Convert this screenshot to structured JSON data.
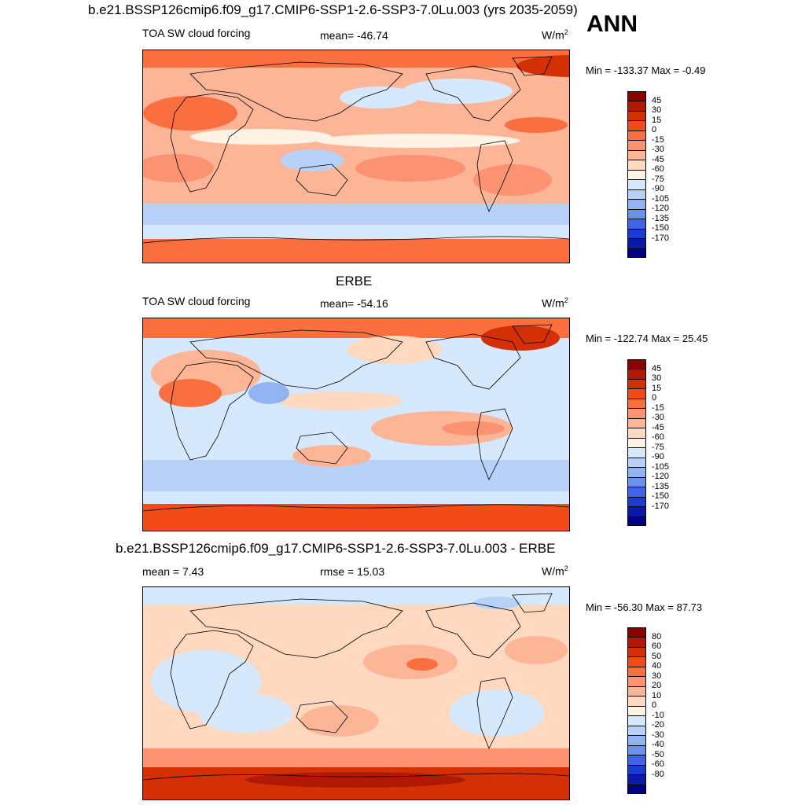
{
  "season": "ANN",
  "panels": [
    {
      "id": "model",
      "title": "b.e21.BSSP126cmip6.f09_g17.CMIP6-SSP1-2.6-SSP3-7.0Lu.003 (yrs 2035-2059)",
      "left_text": "TOA SW cloud forcing",
      "center_text": "mean= -46.74",
      "units_base": "W/m",
      "units_exp": "2",
      "minmax": "Min = -133.37 Max =  -0.49",
      "levels": [
        "45",
        "30",
        "15",
        "0",
        "-15",
        "-30",
        "-45",
        "-60",
        "-75",
        "-90",
        "-105",
        "-120",
        "-135",
        "-150",
        "-170"
      ],
      "colors": [
        "#8b0000",
        "#b01a04",
        "#d43006",
        "#f24b1a",
        "#fa6f40",
        "#fb9271",
        "#fdb597",
        "#fed8bf",
        "#fff3e6",
        "#d6e8fb",
        "#b7d1f8",
        "#92b3f2",
        "#6b91ec",
        "#3f63e6",
        "#1a3cd4",
        "#0a1aa8",
        "#000080"
      ]
    },
    {
      "id": "obs",
      "title": "ERBE",
      "left_text": "TOA SW cloud forcing",
      "center_text": "mean= -54.16",
      "units_base": "W/m",
      "units_exp": "2",
      "minmax": "Min = -122.74 Max =  25.45",
      "levels": [
        "45",
        "30",
        "15",
        "0",
        "-15",
        "-30",
        "-45",
        "-60",
        "-75",
        "-90",
        "-105",
        "-120",
        "-135",
        "-150",
        "-170"
      ],
      "colors": [
        "#8b0000",
        "#b01a04",
        "#d43006",
        "#f24b1a",
        "#fa6f40",
        "#fb9271",
        "#fdb597",
        "#fed8bf",
        "#fff3e6",
        "#d6e8fb",
        "#b7d1f8",
        "#92b3f2",
        "#6b91ec",
        "#3f63e6",
        "#1a3cd4",
        "#0a1aa8",
        "#000080"
      ]
    },
    {
      "id": "diff",
      "title": "b.e21.BSSP126cmip6.f09_g17.CMIP6-SSP1-2.6-SSP3-7.0Lu.003 - ERBE",
      "left_text": "mean =   7.43",
      "center_text": "rmse =  15.03",
      "units_base": "W/m",
      "units_exp": "2",
      "minmax": "Min = -56.30 Max =  87.73",
      "levels": [
        "80",
        "60",
        "50",
        "40",
        "30",
        "20",
        "10",
        "0",
        "-10",
        "-20",
        "-30",
        "-40",
        "-50",
        "-60",
        "-80"
      ],
      "colors": [
        "#8b0000",
        "#b01a04",
        "#d43006",
        "#f24b1a",
        "#fa6f40",
        "#fb9271",
        "#fdb597",
        "#fed8bf",
        "#fff3e6",
        "#d6e8fb",
        "#b7d1f8",
        "#92b3f2",
        "#6b91ec",
        "#3f63e6",
        "#1a3cd4",
        "#0a1aa8",
        "#000080"
      ]
    }
  ]
}
